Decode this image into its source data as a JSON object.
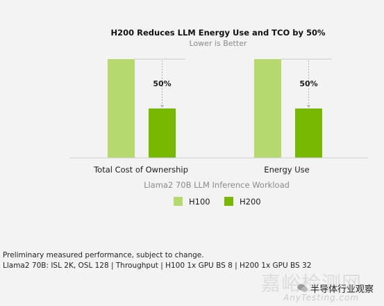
{
  "chart_data": {
    "type": "bar",
    "title": "H200 Reduces LLM Energy Use and TCO by 50%",
    "subtitle": "Lower is Better",
    "xlabel": "Llama2 70B LLM Inference Workload",
    "categories": [
      "Total Cost of Ownership",
      "Energy Use"
    ],
    "series": [
      {
        "name": "H100",
        "color": "#b5d96d",
        "values": [
          1.0,
          1.0
        ]
      },
      {
        "name": "H200",
        "color": "#76b900",
        "values": [
          0.5,
          0.5
        ]
      }
    ],
    "annotations": [
      "50%",
      "50%"
    ],
    "ylim": [
      0,
      1.0
    ],
    "grid": false,
    "legend_position": "bottom"
  },
  "footnotes": [
    "Preliminary measured performance, subject to change.",
    "Llama2 70B: ISL 2K, OSL 128 | Throughput | H100 1x GPU BS 8 | H200 1x GPU BS 32"
  ],
  "watermark": {
    "large": "嘉峪检测网",
    "handle": "半导体行业观察",
    "url": "AnyTesting.com"
  }
}
